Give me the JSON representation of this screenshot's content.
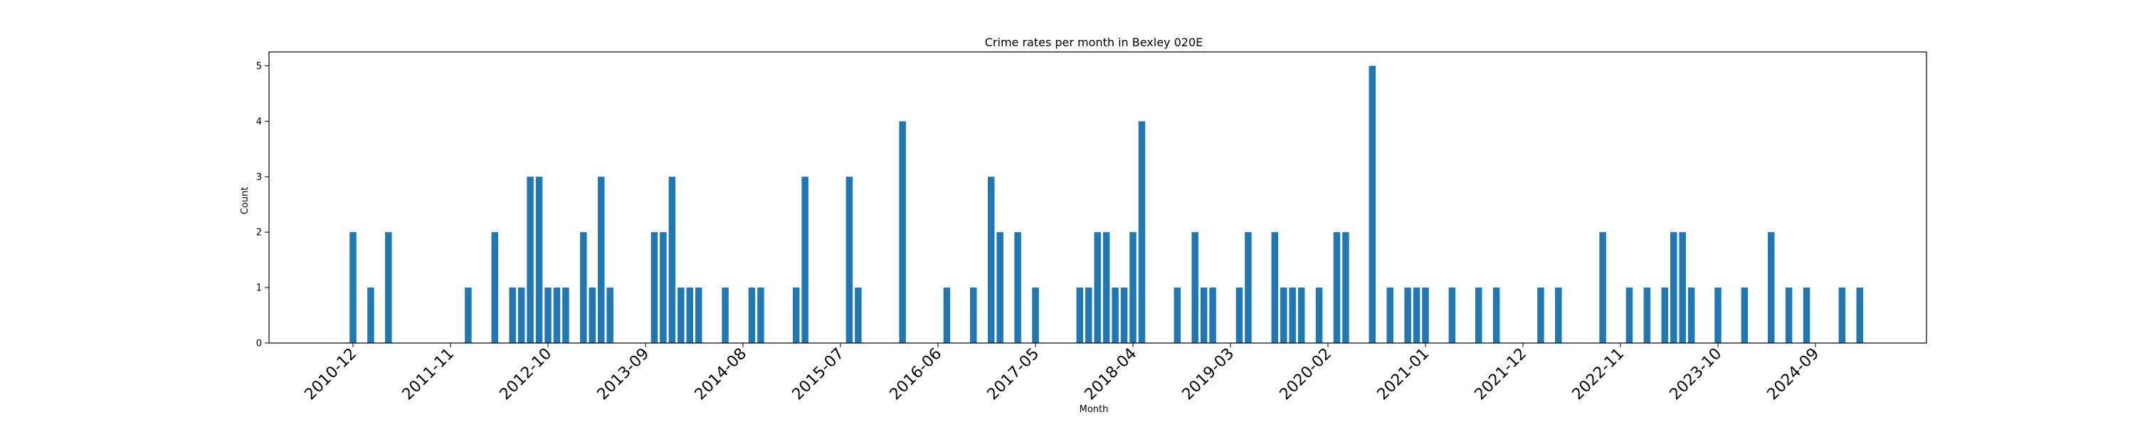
{
  "chart_data": {
    "type": "bar",
    "title": "Crime rates per month in Bexley 020E",
    "xlabel": "Month",
    "ylabel": "Count",
    "ylim": [
      0,
      5.25
    ],
    "yticks": [
      0,
      1,
      2,
      3,
      4,
      5
    ],
    "xticks": [
      "2010-12",
      "2011-11",
      "2012-10",
      "2013-09",
      "2014-08",
      "2015-07",
      "2016-06",
      "2017-05",
      "2018-04",
      "2019-03",
      "2020-02",
      "2021-01",
      "2021-12",
      "2022-11",
      "2023-10",
      "2024-09"
    ],
    "bar_color": "#1f77b4",
    "grid": false,
    "legend": "none",
    "categories": [
      "2010-12",
      "2011-02",
      "2011-04",
      "2012-01",
      "2012-04",
      "2012-06",
      "2012-07",
      "2012-08",
      "2012-09",
      "2012-10",
      "2012-11",
      "2012-12",
      "2013-02",
      "2013-03",
      "2013-04",
      "2013-05",
      "2013-10",
      "2013-11",
      "2013-12",
      "2014-01",
      "2014-02",
      "2014-03",
      "2014-06",
      "2014-09",
      "2014-10",
      "2015-02",
      "2015-03",
      "2015-08",
      "2015-09",
      "2016-02",
      "2016-07",
      "2016-10",
      "2016-12",
      "2017-01",
      "2017-03",
      "2017-05",
      "2017-10",
      "2017-11",
      "2017-12",
      "2018-01",
      "2018-02",
      "2018-03",
      "2018-04",
      "2018-05",
      "2018-09",
      "2018-11",
      "2018-12",
      "2019-01",
      "2019-04",
      "2019-05",
      "2019-08",
      "2019-09",
      "2019-10",
      "2019-11",
      "2020-01",
      "2020-03",
      "2020-04",
      "2020-07",
      "2020-09",
      "2020-11",
      "2020-12",
      "2021-01",
      "2021-04",
      "2021-07",
      "2021-09",
      "2022-02",
      "2022-04",
      "2022-09",
      "2022-12",
      "2023-02",
      "2023-04",
      "2023-05",
      "2023-06",
      "2023-07",
      "2023-10",
      "2024-01",
      "2024-04",
      "2024-06",
      "2024-08",
      "2024-12",
      "2025-02"
    ],
    "values": [
      2,
      1,
      2,
      1,
      2,
      1,
      1,
      3,
      3,
      1,
      1,
      1,
      2,
      1,
      3,
      1,
      2,
      2,
      3,
      1,
      1,
      1,
      1,
      1,
      1,
      1,
      3,
      3,
      1,
      4,
      1,
      1,
      3,
      2,
      2,
      1,
      1,
      1,
      2,
      2,
      1,
      1,
      2,
      4,
      1,
      2,
      1,
      1,
      1,
      2,
      2,
      1,
      1,
      1,
      1,
      2,
      2,
      5,
      1,
      1,
      1,
      1,
      1,
      1,
      1,
      1,
      1,
      2,
      1,
      1,
      1,
      2,
      2,
      1,
      1,
      1,
      2,
      1,
      1,
      1,
      1
    ]
  }
}
